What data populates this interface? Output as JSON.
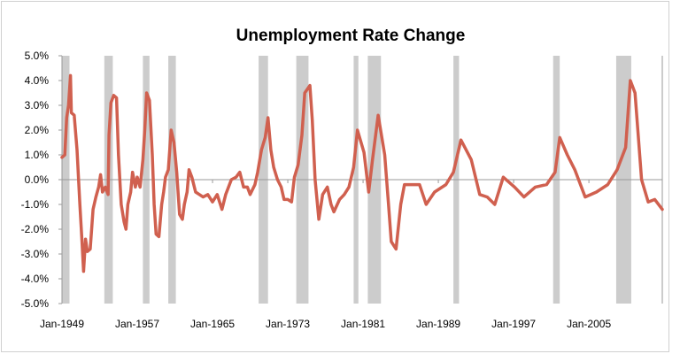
{
  "chart_data": {
    "type": "line",
    "title": "Unemployment Rate Change",
    "xlabel": "",
    "ylabel": "",
    "ylim": [
      -5,
      5
    ],
    "xlim": [
      1949.0,
      2012.8
    ],
    "y_ticks": [
      5,
      4,
      3,
      2,
      1,
      0,
      -1,
      -2,
      -3,
      -4,
      -5
    ],
    "y_tick_labels": [
      "5.0%",
      "4.0%",
      "3.0%",
      "2.0%",
      "1.0%",
      "0.0%",
      "-1.0%",
      "-2.0%",
      "-3.0%",
      "-4.0%",
      "-5.0%"
    ],
    "x_ticks": [
      1949,
      1957,
      1965,
      1973,
      1981,
      1989,
      1997,
      2005
    ],
    "x_tick_labels": [
      "Jan-1949",
      "Jan-1957",
      "Jan-1965",
      "Jan-1973",
      "Jan-1981",
      "Jan-1989",
      "Jan-1997",
      "Jan-2005"
    ],
    "grid": false,
    "legend": "none",
    "colors": {
      "line": "#d0604f",
      "recession": "#cccccc",
      "axis": "#9a9a9a"
    },
    "recessions": [
      [
        1949.0,
        1949.8
      ],
      [
        1953.5,
        1954.4
      ],
      [
        1957.6,
        1958.3
      ],
      [
        1960.3,
        1961.1
      ],
      [
        1969.9,
        1970.9
      ],
      [
        1973.9,
        1975.2
      ],
      [
        1980.0,
        1980.5
      ],
      [
        1981.5,
        1982.9
      ],
      [
        1990.6,
        1991.2
      ],
      [
        2001.2,
        2001.9
      ],
      [
        2007.9,
        2009.5
      ]
    ],
    "series": [
      {
        "name": "Unemployment Rate Change",
        "x": [
          1949.0,
          1949.3,
          1949.5,
          1949.7,
          1949.9,
          1950.0,
          1950.3,
          1950.6,
          1950.9,
          1951.1,
          1951.3,
          1951.5,
          1951.7,
          1952.0,
          1952.3,
          1952.6,
          1952.9,
          1953.1,
          1953.3,
          1953.6,
          1953.9,
          1954.0,
          1954.2,
          1954.5,
          1954.8,
          1955.0,
          1955.3,
          1955.6,
          1955.8,
          1956.0,
          1956.3,
          1956.5,
          1956.8,
          1957.0,
          1957.3,
          1957.6,
          1957.8,
          1958.0,
          1958.3,
          1958.6,
          1958.8,
          1959.0,
          1959.3,
          1959.6,
          1959.8,
          1960.0,
          1960.3,
          1960.6,
          1960.9,
          1961.2,
          1961.5,
          1961.8,
          1962.0,
          1962.3,
          1962.5,
          1962.8,
          1963.2,
          1963.6,
          1964.0,
          1964.5,
          1965.0,
          1965.5,
          1966.0,
          1966.4,
          1967.0,
          1967.5,
          1967.9,
          1968.3,
          1968.7,
          1969.0,
          1969.5,
          1969.8,
          1970.2,
          1970.6,
          1970.9,
          1971.2,
          1971.5,
          1971.9,
          1972.3,
          1972.6,
          1973.0,
          1973.4,
          1973.7,
          1974.1,
          1974.5,
          1974.8,
          1975.35,
          1975.6,
          1975.9,
          1976.3,
          1976.7,
          1977.2,
          1977.6,
          1977.9,
          1978.5,
          1979.0,
          1979.5,
          1980.0,
          1980.4,
          1981.1,
          1981.6,
          1982.0,
          1982.6,
          1983.3,
          1983.7,
          1984.0,
          1984.5,
          1985.0,
          1985.4,
          1986.3,
          1987.0,
          1987.7,
          1988.6,
          1989.8,
          1990.6,
          1991.4,
          1992.5,
          1993.4,
          1994.2,
          1995.0,
          1995.9,
          1997.1,
          1998.1,
          1999.3,
          2000.5,
          2001.4,
          2001.9,
          2002.7,
          2003.5,
          2004.6,
          2005.8,
          2007.0,
          2008.0,
          2008.9,
          2009.4,
          2009.9,
          2010.6,
          2011.3,
          2012.0,
          2012.8
        ],
        "y": [
          0.9,
          1.0,
          2.5,
          3.0,
          4.2,
          2.7,
          2.6,
          1.2,
          -1.0,
          -2.3,
          -3.7,
          -2.4,
          -2.9,
          -2.8,
          -1.2,
          -0.7,
          -0.3,
          0.2,
          -0.5,
          -0.3,
          -0.6,
          1.8,
          3.1,
          3.4,
          3.3,
          1.0,
          -1.0,
          -1.7,
          -2.0,
          -1.0,
          -0.5,
          0.3,
          -0.3,
          0.1,
          -0.3,
          0.8,
          2.0,
          3.5,
          3.2,
          1.0,
          -1.0,
          -2.2,
          -2.3,
          -1.0,
          -0.5,
          0.1,
          0.4,
          2.0,
          1.5,
          0.3,
          -1.4,
          -1.6,
          -1.0,
          -0.5,
          0.4,
          0.1,
          -0.5,
          -0.6,
          -0.7,
          -0.6,
          -0.9,
          -0.6,
          -1.2,
          -0.6,
          0.0,
          0.1,
          0.3,
          -0.3,
          -0.3,
          -0.6,
          -0.2,
          0.3,
          1.2,
          1.7,
          2.5,
          1.2,
          0.5,
          0.0,
          -0.3,
          -0.8,
          -0.8,
          -0.9,
          0.1,
          0.6,
          1.8,
          3.5,
          3.8,
          2.4,
          0.0,
          -1.6,
          -0.6,
          -0.3,
          -1.0,
          -1.3,
          -0.8,
          -0.6,
          -0.3,
          0.5,
          2.0,
          1.1,
          -0.5,
          0.8,
          2.6,
          1.0,
          -1.0,
          -2.5,
          -2.8,
          -1.0,
          -0.2,
          -0.2,
          -0.2,
          -1.0,
          -0.5,
          -0.2,
          0.3,
          1.6,
          0.8,
          -0.6,
          -0.7,
          -1.0,
          0.1,
          -0.3,
          -0.7,
          -0.3,
          -0.2,
          0.3,
          1.7,
          1.0,
          0.4,
          -0.7,
          -0.5,
          -0.2,
          0.4,
          1.3,
          4.0,
          3.5,
          0.0,
          -0.9,
          -0.8,
          -1.2
        ]
      }
    ]
  }
}
